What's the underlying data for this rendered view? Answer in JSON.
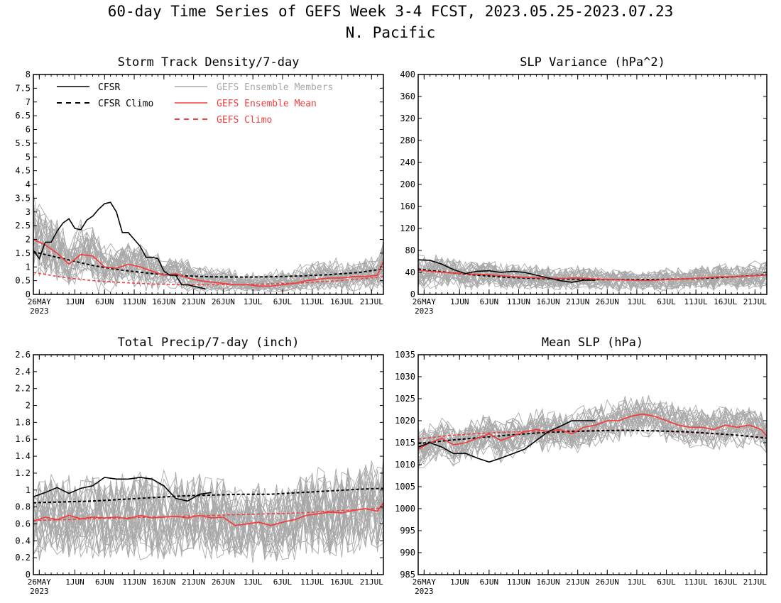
{
  "figure": {
    "title": "60-day Time Series of GEFS Week 3-4 FCST, 2023.05.25-2023.07.23",
    "subtitle": "N. Pacific"
  },
  "colors": {
    "cfsr": "#000000",
    "members": "#a9a9a9",
    "mean": "#f24040",
    "axis": "#000000"
  },
  "legend": {
    "entries": [
      {
        "label": "CFSR",
        "color": "#000000",
        "dash": false
      },
      {
        "label": "CFSR Climo",
        "color": "#000000",
        "dash": true
      },
      {
        "label": "GEFS Ensemble Members",
        "color": "#a9a9a9",
        "dash": false
      },
      {
        "label": "GEFS Ensemble Mean",
        "color": "#f24040",
        "dash": false
      },
      {
        "label": "GEFS Climo",
        "color": "#f24040",
        "dash": true
      }
    ]
  },
  "chart_data": [
    {
      "type": "line",
      "title": "Storm Track Density/7-day",
      "ylim": [
        0,
        8
      ],
      "yticks": [
        "0",
        "0.5",
        "1",
        "1.5",
        "2",
        "2.5",
        "3",
        "3.5",
        "4",
        "4.5",
        "5",
        "5.5",
        "6",
        "6.5",
        "7",
        "7.5",
        "8"
      ],
      "x_tick_labels": [
        "26MAY",
        "1JUN",
        "6JUN",
        "11JUN",
        "16JUN",
        "21JUN",
        "26JUN",
        "1JUL",
        "6JUL",
        "11JUL",
        "16JUL",
        "21JUL"
      ],
      "x_year_label": "2023",
      "x_range_days": [
        0,
        59
      ],
      "cfsr": {
        "x": [
          0,
          1,
          2,
          3,
          4,
          5,
          6,
          7,
          8,
          9,
          10,
          11,
          12,
          13,
          14,
          15,
          16,
          17,
          18,
          19,
          20,
          21,
          22,
          23,
          24,
          25,
          26,
          27,
          28,
          29,
          30
        ],
        "y": [
          1.6,
          1.3,
          1.9,
          1.9,
          2.3,
          2.6,
          2.75,
          2.4,
          2.35,
          2.7,
          2.85,
          3.1,
          3.3,
          3.35,
          3.0,
          2.25,
          2.25,
          2.0,
          1.75,
          1.35,
          1.35,
          1.3,
          0.85,
          0.7,
          0.7,
          0.35,
          0.35,
          0.3,
          0.25,
          0.2,
          null
        ]
      },
      "cfsr_climo": {
        "x": [
          0,
          5,
          10,
          15,
          20,
          25,
          30,
          35,
          40,
          45,
          50,
          55,
          59
        ],
        "y": [
          1.55,
          1.3,
          1.05,
          0.88,
          0.76,
          0.68,
          0.64,
          0.63,
          0.64,
          0.67,
          0.72,
          0.8,
          0.93
        ]
      },
      "ens_mean": {
        "x": [
          0,
          2,
          4,
          6,
          8,
          10,
          12,
          14,
          16,
          18,
          20,
          22,
          24,
          26,
          28,
          30,
          32,
          34,
          36,
          38,
          40,
          42,
          44,
          46,
          48,
          50,
          52,
          54,
          56,
          58,
          59
        ],
        "y": [
          2.0,
          1.8,
          1.5,
          1.1,
          1.45,
          1.4,
          1.0,
          0.95,
          1.1,
          1.0,
          0.85,
          0.7,
          0.75,
          0.6,
          0.5,
          0.45,
          0.4,
          0.35,
          0.35,
          0.3,
          0.3,
          0.35,
          0.4,
          0.5,
          0.55,
          0.6,
          0.6,
          0.65,
          0.65,
          0.7,
          1.2
        ]
      },
      "gefs_climo": {
        "x": [
          0,
          5,
          10,
          15,
          20,
          25,
          30,
          35,
          40,
          45,
          50,
          55,
          59
        ],
        "y": [
          0.8,
          0.62,
          0.5,
          0.43,
          0.38,
          0.36,
          0.35,
          0.36,
          0.38,
          0.42,
          0.48,
          0.56,
          0.65
        ]
      },
      "members": {
        "count": 30,
        "base": "ens_mean",
        "spread": 0.85,
        "positive": true
      }
    },
    {
      "type": "line",
      "title": "SLP Variance (hPa^2)",
      "ylim": [
        0,
        400
      ],
      "yticks": [
        "0",
        "40",
        "80",
        "120",
        "160",
        "200",
        "240",
        "280",
        "320",
        "360",
        "400"
      ],
      "x_tick_labels": [
        "26MAY",
        "1JUN",
        "6JUN",
        "11JUN",
        "16JUN",
        "21JUN",
        "26JUN",
        "1JUL",
        "6JUL",
        "11JUL",
        "16JUL",
        "21JUL"
      ],
      "x_year_label": "2023",
      "x_range_days": [
        0,
        59
      ],
      "cfsr": {
        "x": [
          0,
          2,
          4,
          6,
          8,
          10,
          12,
          14,
          16,
          18,
          20,
          22,
          24,
          26,
          28,
          30
        ],
        "y": [
          63,
          62,
          55,
          45,
          38,
          42,
          43,
          40,
          42,
          40,
          35,
          30,
          25,
          22,
          26,
          26
        ]
      },
      "cfsr_climo": {
        "x": [
          0,
          5,
          10,
          15,
          20,
          25,
          30,
          35,
          40,
          45,
          50,
          55,
          59
        ],
        "y": [
          46,
          40,
          35,
          31,
          29,
          28,
          27,
          27,
          27,
          28,
          30,
          33,
          36
        ]
      },
      "ens_mean": {
        "x": [
          0,
          3,
          6,
          9,
          12,
          15,
          18,
          21,
          24,
          27,
          30,
          33,
          36,
          39,
          42,
          45,
          48,
          51,
          54,
          57,
          59
        ],
        "y": [
          44,
          41,
          39,
          37,
          36,
          33,
          31,
          30,
          29,
          30,
          28,
          27,
          26,
          25,
          27,
          28,
          30,
          32,
          32,
          34,
          35
        ]
      },
      "gefs_climo": {
        "x": [
          0,
          5,
          10,
          15,
          20,
          25,
          30,
          35,
          40,
          45,
          50,
          55,
          59
        ],
        "y": [
          45,
          40,
          35,
          32,
          30,
          28,
          27,
          27,
          27,
          28,
          30,
          33,
          36
        ]
      },
      "members": {
        "count": 30,
        "base": "ens_mean",
        "spread": 12,
        "positive": true
      }
    },
    {
      "type": "line",
      "title": "Total Precip/7-day (inch)",
      "ylim": [
        0,
        2.6
      ],
      "yticks": [
        "0",
        "0.2",
        "0.4",
        "0.6",
        "0.8",
        "1",
        "1.2",
        "1.4",
        "1.6",
        "1.8",
        "2",
        "2.2",
        "2.4",
        "2.6"
      ],
      "x_tick_labels": [
        "26MAY",
        "1JUN",
        "6JUN",
        "11JUN",
        "16JUN",
        "21JUN",
        "26JUN",
        "1JUL",
        "6JUL",
        "11JUL",
        "16JUL",
        "21JUL"
      ],
      "x_year_label": "2023",
      "x_range_days": [
        0,
        59
      ],
      "cfsr": {
        "x": [
          0,
          2,
          4,
          6,
          8,
          10,
          12,
          14,
          16,
          18,
          20,
          22,
          24,
          26,
          28,
          30
        ],
        "y": [
          0.92,
          0.97,
          1.03,
          0.96,
          1.02,
          1.05,
          1.15,
          1.13,
          1.13,
          1.15,
          1.13,
          1.05,
          0.9,
          0.87,
          0.95,
          0.97
        ]
      },
      "cfsr_climo": {
        "x": [
          0,
          5,
          10,
          15,
          20,
          25,
          30,
          35,
          40,
          45,
          50,
          55,
          59
        ],
        "y": [
          0.85,
          0.86,
          0.87,
          0.89,
          0.91,
          0.93,
          0.94,
          0.95,
          0.95,
          0.97,
          0.99,
          1.01,
          1.02
        ]
      },
      "ens_mean": {
        "x": [
          0,
          2,
          4,
          6,
          8,
          10,
          12,
          14,
          16,
          18,
          20,
          22,
          24,
          26,
          28,
          30,
          32,
          34,
          36,
          38,
          40,
          42,
          44,
          46,
          48,
          50,
          52,
          54,
          56,
          58,
          59
        ],
        "y": [
          0.63,
          0.68,
          0.65,
          0.7,
          0.66,
          0.68,
          0.67,
          0.68,
          0.66,
          0.7,
          0.67,
          0.68,
          0.69,
          0.67,
          0.7,
          0.67,
          0.68,
          0.58,
          0.6,
          0.62,
          0.58,
          0.62,
          0.65,
          0.7,
          0.72,
          0.74,
          0.73,
          0.76,
          0.78,
          0.75,
          0.85
        ]
      },
      "gefs_climo": {
        "x": [
          0,
          5,
          10,
          15,
          20,
          25,
          30,
          35,
          40,
          45,
          50,
          55,
          59
        ],
        "y": [
          0.64,
          0.65,
          0.66,
          0.67,
          0.68,
          0.69,
          0.7,
          0.71,
          0.72,
          0.73,
          0.75,
          0.77,
          0.79
        ]
      },
      "members": {
        "count": 30,
        "base": "ens_mean",
        "spread": 0.28,
        "positive": true
      }
    },
    {
      "type": "line",
      "title": "Mean SLP (hPa)",
      "ylim": [
        985,
        1035
      ],
      "yticks": [
        "985",
        "990",
        "995",
        "1000",
        "1005",
        "1010",
        "1015",
        "1020",
        "1025",
        "1030",
        "1035"
      ],
      "x_tick_labels": [
        "26MAY",
        "1JUN",
        "6JUN",
        "11JUN",
        "16JUN",
        "21JUN",
        "26JUN",
        "1JUL",
        "6JUL",
        "11JUL",
        "16JUL",
        "21JUL"
      ],
      "x_year_label": "2023",
      "x_range_days": [
        0,
        59
      ],
      "cfsr": {
        "x": [
          0,
          2,
          4,
          6,
          8,
          10,
          12,
          14,
          16,
          18,
          20,
          22,
          24,
          26,
          28,
          30
        ],
        "y": [
          1014,
          1015,
          1014,
          1012.5,
          1012.6,
          1011.5,
          1010.6,
          1011.5,
          1012.5,
          1013.5,
          1015.5,
          1017.5,
          1018.7,
          1020,
          1020,
          1020
        ]
      },
      "cfsr_climo": {
        "x": [
          0,
          5,
          10,
          15,
          20,
          25,
          30,
          35,
          40,
          45,
          50,
          55,
          59
        ],
        "y": [
          1014.8,
          1015.5,
          1016.1,
          1016.7,
          1017.2,
          1017.5,
          1017.7,
          1017.8,
          1017.7,
          1017.5,
          1017.1,
          1016.6,
          1016
        ]
      },
      "ens_mean": {
        "x": [
          0,
          2,
          4,
          6,
          8,
          10,
          12,
          14,
          16,
          18,
          20,
          22,
          24,
          26,
          28,
          30,
          32,
          34,
          36,
          38,
          40,
          42,
          44,
          46,
          48,
          50,
          52,
          54,
          56,
          58,
          59
        ],
        "y": [
          1013.5,
          1015,
          1016,
          1014.5,
          1015,
          1016,
          1017,
          1015.5,
          1016.5,
          1017.5,
          1018,
          1017.5,
          1018,
          1017,
          1018.5,
          1019,
          1020,
          1020,
          1021,
          1021.5,
          1021,
          1020,
          1019,
          1018.5,
          1018.5,
          1018,
          1019,
          1018.5,
          1019,
          1018,
          1016.5
        ]
      },
      "gefs_climo": {
        "x": [
          0,
          5,
          10,
          15,
          20,
          25,
          30,
          35,
          40,
          45,
          50,
          55,
          59
        ],
        "y": [
          1015.8,
          1016.6,
          1017.1,
          1017.4,
          1017.6,
          1017.7,
          1017.8,
          1017.8,
          1017.7,
          1017.4,
          1017,
          1016.6,
          1016.2
        ]
      },
      "members": {
        "count": 30,
        "base": "ens_mean",
        "spread": 5.5,
        "positive": false
      }
    }
  ]
}
